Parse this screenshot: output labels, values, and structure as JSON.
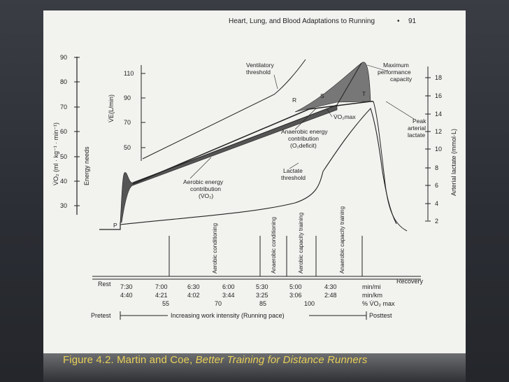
{
  "page_header": {
    "title": "Heart, Lung, and Blood Adaptations to Running",
    "bullet": "•",
    "page_number": "91"
  },
  "left_axis": {
    "label_vo2": "V̇O₂ (ml · kg⁻¹ · min⁻¹)",
    "label_energy": "Energy needs",
    "ticks": [
      "90",
      "80",
      "70",
      "60",
      "50",
      "40",
      "30"
    ]
  },
  "ve_axis": {
    "label": "V̇E(L/min)",
    "ticks": [
      "110",
      "90",
      "70",
      "50"
    ]
  },
  "right_axis": {
    "label": "Arterial lactate (mmol·L)",
    "ticks": [
      "18",
      "16",
      "14",
      "12",
      "10",
      "8",
      "6",
      "4",
      "2"
    ]
  },
  "annotations": {
    "vent_threshold_1": "Ventilatory",
    "vent_threshold_2": "threshold",
    "max_perf_1": "Maximum",
    "max_perf_2": "performance",
    "max_perf_3": "capacity",
    "point_r": "R",
    "point_s": "S",
    "point_t": "T",
    "point_p": "P",
    "vo2max": "V̇O₂max",
    "anaerobic_1": "Anaerobic energy",
    "anaerobic_2": "contribution",
    "anaerobic_3": "(O₂deficit)",
    "peak_1": "Peak",
    "peak_2": "arterial",
    "peak_3": "lactate",
    "aerobic_1": "Aerobic energy",
    "aerobic_2": "contribution",
    "aerobic_3": "(V̇O₂)",
    "lactate_1": "Lactate",
    "lactate_2": "threshold"
  },
  "zones": [
    {
      "label": "Aerobic conditioning"
    },
    {
      "label": "Anaerobic conditioning"
    },
    {
      "label": "Aerobic capacity training"
    },
    {
      "label": "Anaerobic capacity training"
    }
  ],
  "pace_table": {
    "rest": "Rest",
    "recovery": "Recovery",
    "min_mi": [
      "7:30",
      "7:00",
      "6:30",
      "6:00",
      "5:30",
      "5:00",
      "4:30"
    ],
    "min_km": [
      "4:40",
      "4:21",
      "4:02",
      "3:44",
      "3:25",
      "3:06",
      "2:48"
    ],
    "pct_vo2": [
      "55",
      "70",
      "85",
      "100"
    ],
    "unit_mi": "min/mi",
    "unit_km": "min/km",
    "unit_pct": "% V̇O₂ max"
  },
  "footer_row": {
    "pretest": "Pretest",
    "intensity": "Increasing work intensity (Running pace)",
    "posttest": "Posttest"
  },
  "caption": {
    "prefix": "Figure 4.2. Martin and Coe, ",
    "book": "Better Training for Distance Runners"
  }
}
